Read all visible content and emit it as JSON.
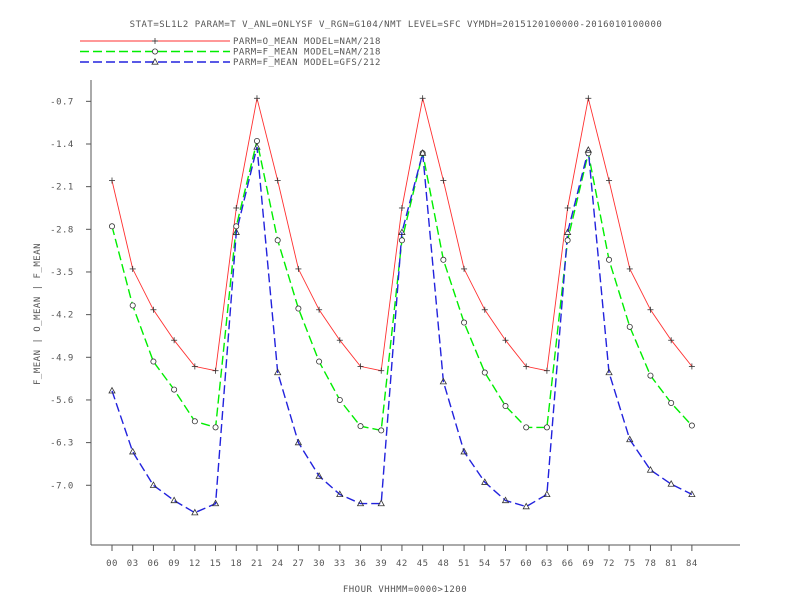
{
  "chart_data": {
    "type": "line",
    "title": "STAT=SL1L2 PARAM=T V_ANL=ONLYSF V_RGN=G104/NMT LEVEL=SFC VYMDH=2015120100000-2016010100000",
    "xlabel": "FHOUR VHHMM=0000>1200",
    "ylabel": "F_MEAN | O_MEAN | F_MEAN",
    "categories": [
      "00",
      "03",
      "06",
      "09",
      "12",
      "15",
      "18",
      "21",
      "24",
      "27",
      "30",
      "33",
      "36",
      "39",
      "42",
      "45",
      "48",
      "51",
      "54",
      "57",
      "60",
      "63",
      "66",
      "69",
      "72",
      "75",
      "78",
      "81",
      "84"
    ],
    "yticks": [
      "-0.7",
      "-1.4",
      "-2.1",
      "-2.8",
      "-3.5",
      "-4.2",
      "-4.9",
      "-5.6",
      "-6.3",
      "-7.0"
    ],
    "ylim": [
      -7.98,
      -0.35
    ],
    "grid": false,
    "legend_position": "top",
    "series": [
      {
        "name": "PARM=O_MEAN MODEL=NAM/218",
        "color": "#ff3030",
        "dash": "solid",
        "marker": "plus",
        "values": [
          -2.0,
          -3.45,
          -4.12,
          -4.62,
          -5.05,
          -5.12,
          -2.45,
          -0.65,
          -2.0,
          -3.45,
          -4.12,
          -4.62,
          -5.05,
          -5.12,
          -2.45,
          -0.65,
          -2.0,
          -3.45,
          -4.12,
          -4.62,
          -5.05,
          -5.12,
          -2.45,
          -0.65,
          -2.0,
          -3.45,
          -4.12,
          -4.62,
          -5.05
        ]
      },
      {
        "name": "PARM=F_MEAN MODEL=NAM/218",
        "color": "#00ee00",
        "dash": "long",
        "marker": "circle",
        "values": [
          -2.75,
          -4.05,
          -4.97,
          -5.43,
          -5.95,
          -6.05,
          -2.75,
          -1.35,
          -2.98,
          -4.1,
          -4.97,
          -5.6,
          -6.03,
          -6.1,
          -2.98,
          -1.55,
          -3.3,
          -4.33,
          -5.15,
          -5.7,
          -6.05,
          -6.05,
          -2.98,
          -1.55,
          -3.3,
          -4.4,
          -5.2,
          -5.65,
          -6.02
        ]
      },
      {
        "name": "PARM=F_MEAN MODEL=GFS/212",
        "color": "#2222dd",
        "dash": "long",
        "marker": "triangle",
        "values": [
          -5.45,
          -6.45,
          -7.0,
          -7.25,
          -7.45,
          -7.3,
          -2.85,
          -1.45,
          -5.15,
          -6.3,
          -6.85,
          -7.15,
          -7.3,
          -7.3,
          -2.85,
          -1.55,
          -5.3,
          -6.45,
          -6.95,
          -7.25,
          -7.35,
          -7.15,
          -2.85,
          -1.5,
          -5.15,
          -6.25,
          -6.75,
          -6.98,
          -7.15
        ]
      }
    ]
  }
}
